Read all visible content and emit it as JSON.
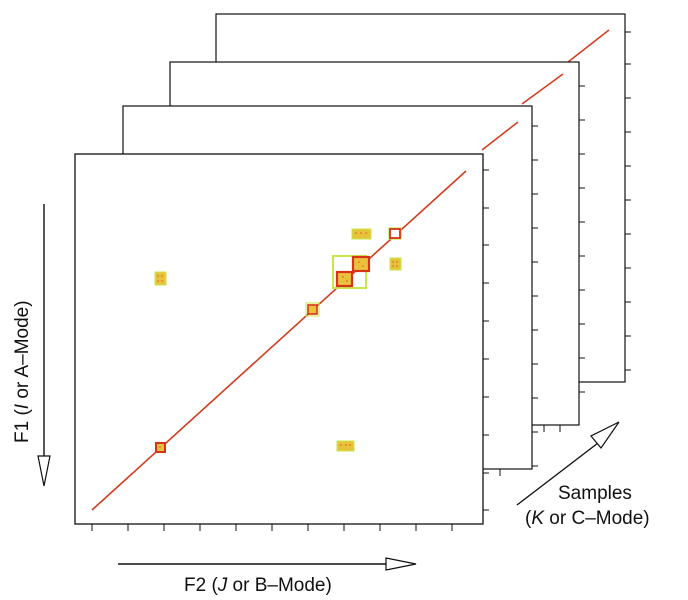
{
  "labels": {
    "f1": {
      "prefix": "F1  (",
      "italic": "I",
      "suffix": " or A–Mode)"
    },
    "f2": {
      "prefix": "F2  (",
      "italic": "J",
      "suffix": " or B–Mode)"
    },
    "samples": {
      "line1": "Samples",
      "line2_prefix": "(",
      "line2_italic": "K",
      "line2_suffix": " or C–Mode)"
    }
  },
  "colors": {
    "frame": "#111111",
    "diagonal": "#d23c1c",
    "peak_outer": "#c6e84a",
    "peak_inner": "#e8c23a",
    "peak_core": "#d8321a"
  },
  "layers": 4
}
